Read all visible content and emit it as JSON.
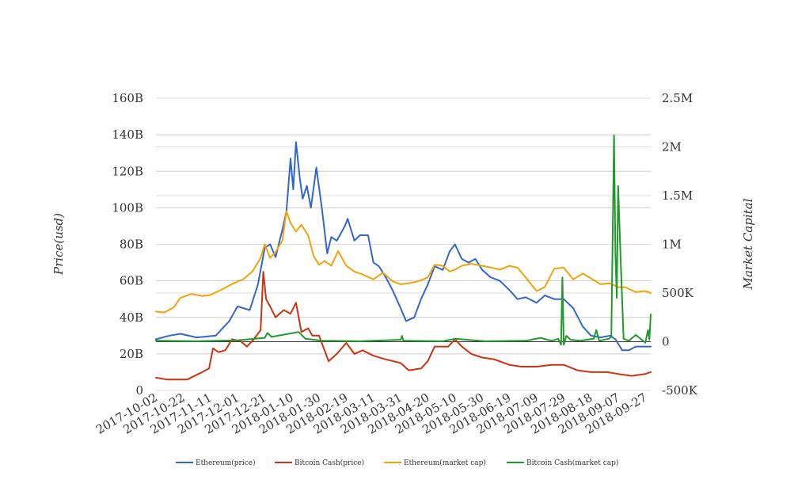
{
  "chart_data": {
    "type": "line",
    "x_categories": [
      "2017-10-02",
      "2017-10-22",
      "2017-11-11",
      "2017-12-01",
      "2017-12-21",
      "2018-01-10",
      "2018-01-30",
      "2018-02-19",
      "2018-03-11",
      "2018-03-31",
      "2018-04-20",
      "2018-05-10",
      "2018-05-30",
      "2018-06-19",
      "2018-07-09",
      "2018-07-29",
      "2018-08-18",
      "2018-09-07",
      "2018-09-27"
    ],
    "x_range": [
      "2017-10-02",
      "2018-10-01"
    ],
    "left_axis": {
      "label": "Price(usd)",
      "ylim": [
        0,
        160
      ],
      "tick_values": [
        0,
        20,
        40,
        60,
        80,
        100,
        120,
        140,
        160
      ],
      "tick_labels": [
        "0",
        "20B",
        "40B",
        "60B",
        "80B",
        "100B",
        "120B",
        "140B",
        "160B"
      ]
    },
    "right_axis": {
      "label": "Market Capital",
      "ylim": [
        -500000,
        2500000
      ],
      "tick_values": [
        -500000,
        0,
        500000,
        1000000,
        1500000,
        2000000,
        2500000
      ],
      "tick_labels": [
        "-500K",
        "0",
        "500K",
        "1M",
        "1.5M",
        "2M",
        "2.5M"
      ]
    },
    "grid": true,
    "legend_position": "bottom-center",
    "series": [
      {
        "name": "Ethereum(price)",
        "axis": "left",
        "color": "#3366cc",
        "points": [
          [
            "2017-10-02",
            28
          ],
          [
            "2017-10-12",
            30
          ],
          [
            "2017-10-20",
            31
          ],
          [
            "2017-11-01",
            29
          ],
          [
            "2017-11-15",
            30
          ],
          [
            "2017-11-25",
            38
          ],
          [
            "2017-12-01",
            46
          ],
          [
            "2017-12-10",
            44
          ],
          [
            "2017-12-16",
            58
          ],
          [
            "2017-12-21",
            78
          ],
          [
            "2017-12-25",
            80
          ],
          [
            "2017-12-29",
            73
          ],
          [
            "2018-01-03",
            88
          ],
          [
            "2018-01-06",
            98
          ],
          [
            "2018-01-09",
            127
          ],
          [
            "2018-01-11",
            110
          ],
          [
            "2018-01-13",
            136
          ],
          [
            "2018-01-16",
            115
          ],
          [
            "2018-01-18",
            105
          ],
          [
            "2018-01-21",
            112
          ],
          [
            "2018-01-24",
            100
          ],
          [
            "2018-01-28",
            122
          ],
          [
            "2018-02-01",
            100
          ],
          [
            "2018-02-05",
            75
          ],
          [
            "2018-02-08",
            84
          ],
          [
            "2018-02-12",
            82
          ],
          [
            "2018-02-18",
            90
          ],
          [
            "2018-02-20",
            94
          ],
          [
            "2018-02-25",
            82
          ],
          [
            "2018-03-01",
            85
          ],
          [
            "2018-03-07",
            85
          ],
          [
            "2018-03-11",
            70
          ],
          [
            "2018-03-15",
            68
          ],
          [
            "2018-03-20",
            62
          ],
          [
            "2018-03-25",
            55
          ],
          [
            "2018-03-31",
            45
          ],
          [
            "2018-04-04",
            38
          ],
          [
            "2018-04-10",
            40
          ],
          [
            "2018-04-15",
            50
          ],
          [
            "2018-04-20",
            58
          ],
          [
            "2018-04-25",
            68
          ],
          [
            "2018-05-01",
            66
          ],
          [
            "2018-05-06",
            76
          ],
          [
            "2018-05-10",
            80
          ],
          [
            "2018-05-15",
            72
          ],
          [
            "2018-05-20",
            70
          ],
          [
            "2018-05-25",
            72
          ],
          [
            "2018-05-30",
            66
          ],
          [
            "2018-06-05",
            62
          ],
          [
            "2018-06-12",
            60
          ],
          [
            "2018-06-19",
            55
          ],
          [
            "2018-06-25",
            50
          ],
          [
            "2018-07-01",
            51
          ],
          [
            "2018-07-09",
            48
          ],
          [
            "2018-07-15",
            52
          ],
          [
            "2018-07-22",
            50
          ],
          [
            "2018-07-29",
            50
          ],
          [
            "2018-08-05",
            45
          ],
          [
            "2018-08-12",
            35
          ],
          [
            "2018-08-18",
            30
          ],
          [
            "2018-08-25",
            29
          ],
          [
            "2018-09-01",
            30
          ],
          [
            "2018-09-05",
            28
          ],
          [
            "2018-09-10",
            22
          ],
          [
            "2018-09-15",
            22
          ],
          [
            "2018-09-20",
            24
          ],
          [
            "2018-09-27",
            24
          ],
          [
            "2018-10-01",
            24
          ]
        ]
      },
      {
        "name": "Bitcoin Cash(price)",
        "axis": "left",
        "color": "#cc3311",
        "points": [
          [
            "2017-10-02",
            7
          ],
          [
            "2017-10-10",
            6
          ],
          [
            "2017-10-25",
            6
          ],
          [
            "2017-11-05",
            10
          ],
          [
            "2017-11-10",
            12
          ],
          [
            "2017-11-13",
            23
          ],
          [
            "2017-11-17",
            21
          ],
          [
            "2017-11-22",
            22
          ],
          [
            "2017-11-27",
            28
          ],
          [
            "2017-12-03",
            27
          ],
          [
            "2017-12-08",
            24
          ],
          [
            "2017-12-13",
            28
          ],
          [
            "2017-12-18",
            33
          ],
          [
            "2017-12-20",
            65
          ],
          [
            "2017-12-22",
            50
          ],
          [
            "2017-12-25",
            46
          ],
          [
            "2017-12-29",
            40
          ],
          [
            "2018-01-04",
            44
          ],
          [
            "2018-01-09",
            42
          ],
          [
            "2018-01-13",
            48
          ],
          [
            "2018-01-17",
            32
          ],
          [
            "2018-01-22",
            34
          ],
          [
            "2018-01-25",
            30
          ],
          [
            "2018-01-30",
            30
          ],
          [
            "2018-02-03",
            22
          ],
          [
            "2018-02-06",
            16
          ],
          [
            "2018-02-12",
            20
          ],
          [
            "2018-02-19",
            26
          ],
          [
            "2018-02-25",
            20
          ],
          [
            "2018-03-03",
            22
          ],
          [
            "2018-03-11",
            19
          ],
          [
            "2018-03-20",
            17
          ],
          [
            "2018-03-31",
            15
          ],
          [
            "2018-04-06",
            11
          ],
          [
            "2018-04-15",
            12
          ],
          [
            "2018-04-20",
            16
          ],
          [
            "2018-04-25",
            24
          ],
          [
            "2018-05-05",
            24
          ],
          [
            "2018-05-10",
            28
          ],
          [
            "2018-05-15",
            24
          ],
          [
            "2018-05-22",
            20
          ],
          [
            "2018-05-30",
            18
          ],
          [
            "2018-06-08",
            17
          ],
          [
            "2018-06-19",
            14
          ],
          [
            "2018-06-28",
            13
          ],
          [
            "2018-07-09",
            13
          ],
          [
            "2018-07-20",
            14
          ],
          [
            "2018-07-29",
            14
          ],
          [
            "2018-08-08",
            11
          ],
          [
            "2018-08-18",
            10
          ],
          [
            "2018-08-30",
            10
          ],
          [
            "2018-09-07",
            9
          ],
          [
            "2018-09-17",
            8
          ],
          [
            "2018-09-27",
            9
          ],
          [
            "2018-10-01",
            10
          ]
        ]
      },
      {
        "name": "Ethereum(market cap)",
        "axis": "right",
        "color": "#f0a30a",
        "points": [
          [
            "2017-10-02",
            310000
          ],
          [
            "2017-10-08",
            300000
          ],
          [
            "2017-10-15",
            350000
          ],
          [
            "2017-10-20",
            450000
          ],
          [
            "2017-10-28",
            490000
          ],
          [
            "2017-11-05",
            470000
          ],
          [
            "2017-11-11",
            480000
          ],
          [
            "2017-11-20",
            540000
          ],
          [
            "2017-11-28",
            600000
          ],
          [
            "2017-12-05",
            640000
          ],
          [
            "2017-12-12",
            720000
          ],
          [
            "2017-12-18",
            860000
          ],
          [
            "2017-12-21",
            1000000
          ],
          [
            "2017-12-25",
            860000
          ],
          [
            "2017-12-29",
            920000
          ],
          [
            "2018-01-03",
            1040000
          ],
          [
            "2018-01-06",
            1340000
          ],
          [
            "2018-01-09",
            1220000
          ],
          [
            "2018-01-13",
            1130000
          ],
          [
            "2018-01-17",
            1200000
          ],
          [
            "2018-01-22",
            1090000
          ],
          [
            "2018-01-26",
            880000
          ],
          [
            "2018-01-30",
            790000
          ],
          [
            "2018-02-03",
            830000
          ],
          [
            "2018-02-08",
            780000
          ],
          [
            "2018-02-13",
            930000
          ],
          [
            "2018-02-19",
            780000
          ],
          [
            "2018-02-25",
            720000
          ],
          [
            "2018-03-03",
            690000
          ],
          [
            "2018-03-11",
            640000
          ],
          [
            "2018-03-18",
            710000
          ],
          [
            "2018-03-25",
            620000
          ],
          [
            "2018-03-31",
            590000
          ],
          [
            "2018-04-06",
            600000
          ],
          [
            "2018-04-13",
            620000
          ],
          [
            "2018-04-20",
            660000
          ],
          [
            "2018-04-25",
            790000
          ],
          [
            "2018-05-01",
            780000
          ],
          [
            "2018-05-06",
            720000
          ],
          [
            "2018-05-10",
            740000
          ],
          [
            "2018-05-15",
            780000
          ],
          [
            "2018-05-22",
            800000
          ],
          [
            "2018-05-30",
            780000
          ],
          [
            "2018-06-06",
            760000
          ],
          [
            "2018-06-12",
            740000
          ],
          [
            "2018-06-19",
            780000
          ],
          [
            "2018-06-25",
            760000
          ],
          [
            "2018-07-01",
            660000
          ],
          [
            "2018-07-09",
            520000
          ],
          [
            "2018-07-15",
            560000
          ],
          [
            "2018-07-22",
            750000
          ],
          [
            "2018-07-29",
            760000
          ],
          [
            "2018-08-05",
            640000
          ],
          [
            "2018-08-12",
            700000
          ],
          [
            "2018-08-18",
            650000
          ],
          [
            "2018-08-25",
            590000
          ],
          [
            "2018-09-01",
            600000
          ],
          [
            "2018-09-07",
            560000
          ],
          [
            "2018-09-12",
            560000
          ],
          [
            "2018-09-20",
            510000
          ],
          [
            "2018-09-27",
            520000
          ],
          [
            "2018-10-01",
            500000
          ]
        ]
      },
      {
        "name": "Bitcoin Cash(market cap)",
        "axis": "right",
        "color": "#22992b",
        "points": [
          [
            "2017-10-02",
            10000
          ],
          [
            "2017-11-01",
            5000
          ],
          [
            "2017-12-01",
            15000
          ],
          [
            "2017-12-21",
            40000
          ],
          [
            "2017-12-23",
            90000
          ],
          [
            "2017-12-26",
            50000
          ],
          [
            "2018-01-15",
            100000
          ],
          [
            "2018-01-20",
            30000
          ],
          [
            "2018-02-01",
            10000
          ],
          [
            "2018-03-01",
            5000
          ],
          [
            "2018-03-31",
            20000
          ],
          [
            "2018-04-01",
            60000
          ],
          [
            "2018-04-02",
            10000
          ],
          [
            "2018-05-01",
            5000
          ],
          [
            "2018-05-10",
            30000
          ],
          [
            "2018-06-01",
            5000
          ],
          [
            "2018-07-01",
            10000
          ],
          [
            "2018-07-12",
            40000
          ],
          [
            "2018-07-20",
            10000
          ],
          [
            "2018-07-25",
            30000
          ],
          [
            "2018-07-27",
            -30000
          ],
          [
            "2018-07-28",
            660000
          ],
          [
            "2018-07-29",
            -30000
          ],
          [
            "2018-07-31",
            60000
          ],
          [
            "2018-08-03",
            20000
          ],
          [
            "2018-08-10",
            10000
          ],
          [
            "2018-08-20",
            30000
          ],
          [
            "2018-08-22",
            120000
          ],
          [
            "2018-08-24",
            10000
          ],
          [
            "2018-08-31",
            30000
          ],
          [
            "2018-09-02",
            50000
          ],
          [
            "2018-09-04",
            2120000
          ],
          [
            "2018-09-05",
            900000
          ],
          [
            "2018-09-06",
            450000
          ],
          [
            "2018-09-07",
            1600000
          ],
          [
            "2018-09-09",
            800000
          ],
          [
            "2018-09-11",
            30000
          ],
          [
            "2018-09-15",
            10000
          ],
          [
            "2018-09-20",
            70000
          ],
          [
            "2018-09-27",
            -10000
          ],
          [
            "2018-09-29",
            120000
          ],
          [
            "2018-09-30",
            20000
          ],
          [
            "2018-10-01",
            280000
          ]
        ]
      }
    ]
  }
}
